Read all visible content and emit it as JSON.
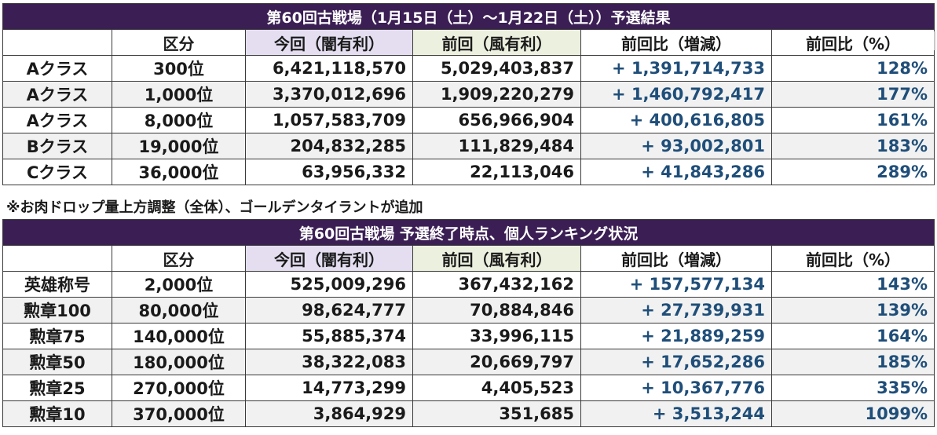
{
  "table1": {
    "title": "第60回古戦場（1月15日（土）～1月22日（土））予選結果",
    "headers": [
      "",
      "区分",
      "今回（闇有利）",
      "前回（風有利）",
      "前回比（増減）",
      "前回比（%）"
    ],
    "rows": [
      [
        "Aクラス",
        "300位",
        "6,421,118,570",
        "5,029,403,837",
        "+ 1,391,714,733",
        "128%"
      ],
      [
        "Aクラス",
        "1,000位",
        "3,370,012,696",
        "1,909,220,279",
        "+ 1,460,792,417",
        "177%"
      ],
      [
        "Aクラス",
        "8,000位",
        "1,057,583,709",
        "656,966,904",
        "+ 400,616,805",
        "161%"
      ],
      [
        "Bクラス",
        "19,000位",
        "204,832,285",
        "111,829,484",
        "+ 93,002,801",
        "183%"
      ],
      [
        "Cクラス",
        "36,000位",
        "63,956,332",
        "22,113,046",
        "+ 41,843,286",
        "289%"
      ]
    ]
  },
  "note": "※お肉ドロップ量上方調整（全体）、ゴールデンタイラントが追加",
  "table2": {
    "title": "第60回古戦場 予選終了時点、個人ランキング状況",
    "headers": [
      "",
      "区分",
      "今回（闇有利）",
      "前回（風有利）",
      "前回比（増減）",
      "前回比（%）"
    ],
    "rows": [
      [
        "英雄称号",
        "2,000位",
        "525,009,296",
        "367,432,162",
        "+ 157,577,134",
        "143%"
      ],
      [
        "勲章100",
        "80,000位",
        "98,624,777",
        "70,884,846",
        "+ 27,739,931",
        "139%"
      ],
      [
        "勲章75",
        "140,000位",
        "55,885,374",
        "33,996,115",
        "+ 21,889,259",
        "164%"
      ],
      [
        "勲章50",
        "180,000位",
        "38,322,083",
        "20,669,797",
        "+ 17,652,286",
        "185%"
      ],
      [
        "勲章25",
        "270,000位",
        "14,773,299",
        "4,405,523",
        "+ 10,367,776",
        "335%"
      ],
      [
        "勲章10",
        "370,000位",
        "3,864,929",
        "351,685",
        "+ 3,513,244",
        "1099%"
      ]
    ]
  },
  "colors": {
    "title_bg": "#3b1f54",
    "current_header_bg": "#e4def0",
    "previous_header_bg": "#ecf0de",
    "diff_text": "#1f4e79",
    "alt_row_bg": "#f1f1f1"
  }
}
